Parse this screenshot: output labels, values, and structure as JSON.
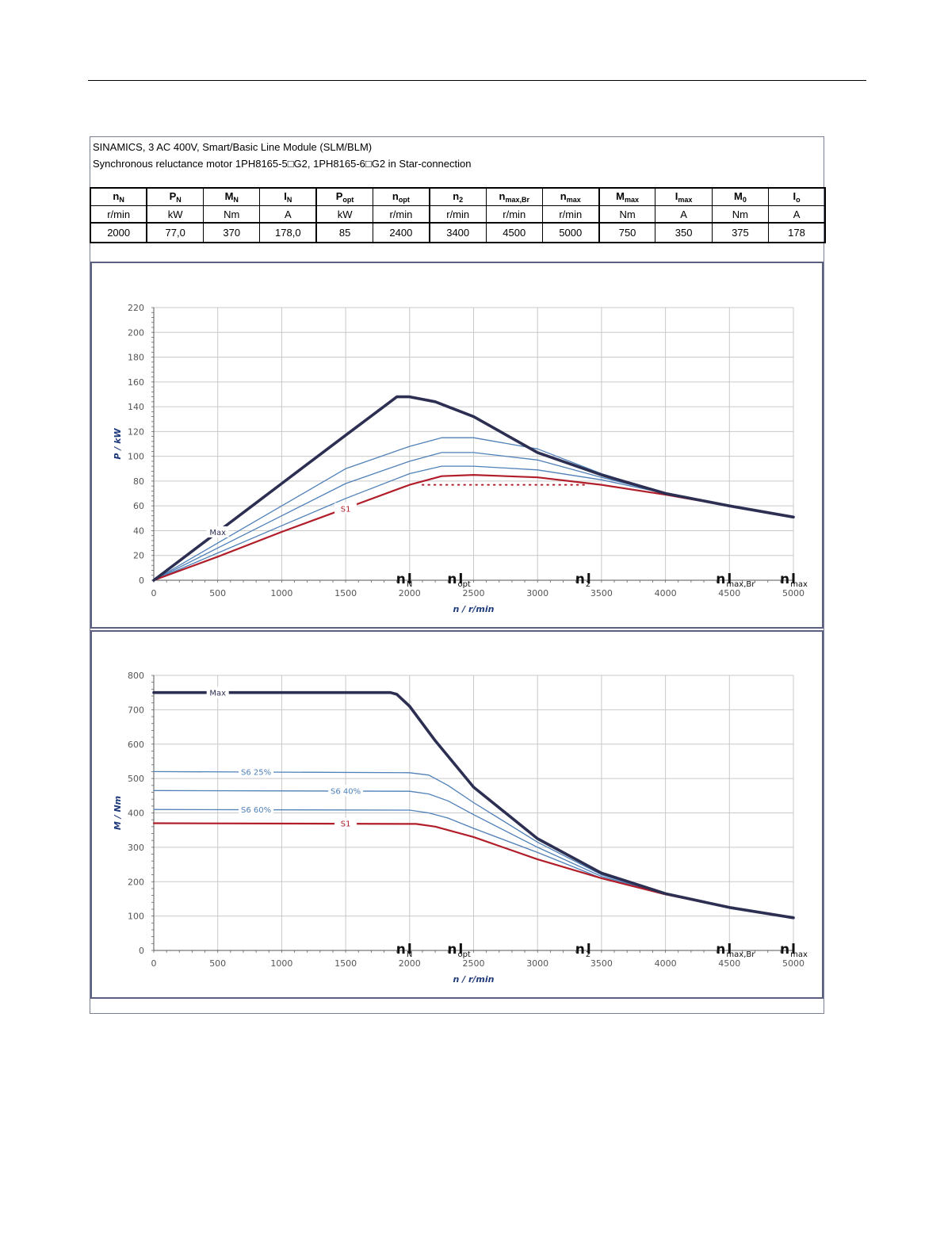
{
  "header": {
    "line1": "SINAMICS, 3 AC 400V, Smart/Basic Line Module (SLM/BLM)",
    "line2": "Synchronous reluctance motor  1PH8165-5□G2,  1PH8165-6□G2   in Star-connection"
  },
  "spec_table": {
    "columns": [
      {
        "sym": "n",
        "sub": "N",
        "unit": "r/min",
        "value": "2000"
      },
      {
        "sym": "P",
        "sub": "N",
        "unit": "kW",
        "value": "77,0"
      },
      {
        "sym": "M",
        "sub": "N",
        "unit": "Nm",
        "value": "370"
      },
      {
        "sym": "I",
        "sub": "N",
        "unit": "A",
        "value": "178,0"
      },
      {
        "sym": "P",
        "sub": "opt",
        "unit": "kW",
        "value": "85"
      },
      {
        "sym": "n",
        "sub": "opt",
        "unit": "r/min",
        "value": "2400"
      },
      {
        "sym": "n",
        "sub": "2",
        "unit": "r/min",
        "value": "3400"
      },
      {
        "sym": "n",
        "sub": "max,Br",
        "unit": "r/min",
        "value": "4500"
      },
      {
        "sym": "n",
        "sub": "max",
        "unit": "r/min",
        "value": "5000"
      },
      {
        "sym": "M",
        "sub": "max",
        "unit": "Nm",
        "value": "750"
      },
      {
        "sym": "I",
        "sub": "max",
        "unit": "A",
        "value": "350"
      },
      {
        "sym": "M",
        "sub": "0",
        "unit": "Nm",
        "value": "375"
      },
      {
        "sym": "I",
        "sub": "o",
        "unit": "A",
        "value": "178"
      }
    ]
  },
  "colors": {
    "max": "#2d2f52",
    "s1": "#b11e2a",
    "s6": "#4f80b8",
    "grid": "#c9c9c9"
  },
  "markers": [
    {
      "sym": "n",
      "sub": "N",
      "x": 2000
    },
    {
      "sym": "n",
      "sub": "opt",
      "x": 2400
    },
    {
      "sym": "n",
      "sub": "2",
      "x": 3400
    },
    {
      "sym": "n",
      "sub": "max,Br",
      "x": 4500
    },
    {
      "sym": "n",
      "sub": "max",
      "x": 5000
    }
  ],
  "chart_data": [
    {
      "type": "line",
      "ylabel": "P / kW",
      "xlabel": "n / r/min",
      "xlim": [
        0,
        5000
      ],
      "ylim": [
        0,
        220
      ],
      "xticks": [
        0,
        500,
        1000,
        1500,
        2000,
        2500,
        3000,
        3500,
        4000,
        4500,
        5000
      ],
      "yticks": [
        0,
        20,
        40,
        60,
        80,
        100,
        120,
        140,
        160,
        180,
        200,
        220
      ],
      "grid": true,
      "series": [
        {
          "name": "Max",
          "role": "max",
          "points": [
            [
              0,
              0
            ],
            [
              500,
              39
            ],
            [
              1000,
              78
            ],
            [
              1500,
              117
            ],
            [
              1900,
              148
            ],
            [
              2000,
              148
            ],
            [
              2200,
              144
            ],
            [
              2500,
              132
            ],
            [
              3000,
              103
            ],
            [
              3500,
              85
            ],
            [
              4000,
              70
            ],
            [
              4500,
              60
            ],
            [
              5000,
              51
            ]
          ]
        },
        {
          "name": "",
          "role": "s6",
          "points": [
            [
              0,
              0
            ],
            [
              500,
              30
            ],
            [
              1000,
              60
            ],
            [
              1500,
              90
            ],
            [
              2000,
              108
            ],
            [
              2250,
              115
            ],
            [
              2500,
              115
            ],
            [
              3000,
              106
            ],
            [
              3500,
              86
            ],
            [
              4000,
              70
            ],
            [
              4500,
              60
            ],
            [
              5000,
              51
            ]
          ]
        },
        {
          "name": "",
          "role": "s6",
          "points": [
            [
              0,
              0
            ],
            [
              500,
              26
            ],
            [
              1000,
              52
            ],
            [
              1500,
              78
            ],
            [
              2000,
              96
            ],
            [
              2250,
              103
            ],
            [
              2500,
              103
            ],
            [
              3000,
              97
            ],
            [
              3500,
              83
            ],
            [
              4000,
              70
            ],
            [
              4500,
              60
            ],
            [
              5000,
              51
            ]
          ]
        },
        {
          "name": "",
          "role": "s6",
          "points": [
            [
              0,
              0
            ],
            [
              500,
              22
            ],
            [
              1000,
              44
            ],
            [
              1500,
              66
            ],
            [
              2000,
              86
            ],
            [
              2250,
              92
            ],
            [
              2500,
              92
            ],
            [
              3000,
              89
            ],
            [
              3500,
              81
            ],
            [
              4000,
              70
            ],
            [
              4500,
              60
            ],
            [
              5000,
              51
            ]
          ]
        },
        {
          "name": "S1",
          "role": "s1",
          "points": [
            [
              0,
              0
            ],
            [
              500,
              19
            ],
            [
              1000,
              39
            ],
            [
              1500,
              58
            ],
            [
              2000,
              77
            ],
            [
              2250,
              84
            ],
            [
              2500,
              85
            ],
            [
              3000,
              83
            ],
            [
              3500,
              77
            ],
            [
              4000,
              69
            ],
            [
              4500,
              60
            ],
            [
              5000,
              51
            ]
          ]
        },
        {
          "name": "",
          "role": "s1-dotted",
          "points": [
            [
              2100,
              77
            ],
            [
              3400,
              77
            ]
          ]
        }
      ],
      "labels": [
        {
          "text": "Max",
          "x": 500,
          "y": 39,
          "role": "max"
        },
        {
          "text": "S1",
          "x": 1500,
          "y": 58,
          "role": "s1"
        }
      ]
    },
    {
      "type": "line",
      "ylabel": "M / Nm",
      "xlabel": "n / r/min",
      "xlim": [
        0,
        5000
      ],
      "ylim": [
        0,
        800
      ],
      "xticks": [
        0,
        500,
        1000,
        1500,
        2000,
        2500,
        3000,
        3500,
        4000,
        4500,
        5000
      ],
      "yticks": [
        0,
        100,
        200,
        300,
        400,
        500,
        600,
        700,
        800
      ],
      "grid": true,
      "series": [
        {
          "name": "Max",
          "role": "max",
          "points": [
            [
              0,
              750
            ],
            [
              1850,
              750
            ],
            [
              1900,
              745
            ],
            [
              2000,
              710
            ],
            [
              2200,
              610
            ],
            [
              2500,
              475
            ],
            [
              3000,
              325
            ],
            [
              3500,
              225
            ],
            [
              4000,
              165
            ],
            [
              4500,
              125
            ],
            [
              5000,
              95
            ]
          ]
        },
        {
          "name": "S6 25%",
          "role": "s6",
          "points": [
            [
              0,
              520
            ],
            [
              2000,
              517
            ],
            [
              2150,
              510
            ],
            [
              2300,
              480
            ],
            [
              2500,
              430
            ],
            [
              3000,
              315
            ],
            [
              3500,
              220
            ],
            [
              4000,
              165
            ],
            [
              4500,
              125
            ],
            [
              5000,
              95
            ]
          ]
        },
        {
          "name": "S6 40%",
          "role": "s6",
          "points": [
            [
              0,
              465
            ],
            [
              2000,
              463
            ],
            [
              2150,
              455
            ],
            [
              2300,
              435
            ],
            [
              2500,
              395
            ],
            [
              3000,
              300
            ],
            [
              3500,
              215
            ],
            [
              4000,
              165
            ],
            [
              4500,
              125
            ],
            [
              5000,
              95
            ]
          ]
        },
        {
          "name": "S6 60%",
          "role": "s6",
          "points": [
            [
              0,
              410
            ],
            [
              2000,
              408
            ],
            [
              2150,
              400
            ],
            [
              2300,
              385
            ],
            [
              2500,
              355
            ],
            [
              3000,
              285
            ],
            [
              3500,
              210
            ],
            [
              4000,
              165
            ],
            [
              4500,
              125
            ],
            [
              5000,
              95
            ]
          ]
        },
        {
          "name": "S1",
          "role": "s1",
          "points": [
            [
              0,
              370
            ],
            [
              2050,
              368
            ],
            [
              2200,
              360
            ],
            [
              2500,
              330
            ],
            [
              3000,
              265
            ],
            [
              3500,
              210
            ],
            [
              4000,
              163
            ],
            [
              4500,
              125
            ],
            [
              5000,
              95
            ]
          ]
        }
      ],
      "labels": [
        {
          "text": "Max",
          "x": 500,
          "y": 750,
          "role": "max"
        },
        {
          "text": "S6 25%",
          "x": 800,
          "y": 520,
          "role": "s6"
        },
        {
          "text": "S6 40%",
          "x": 1500,
          "y": 465,
          "role": "s6"
        },
        {
          "text": "S6 60%",
          "x": 800,
          "y": 410,
          "role": "s6"
        },
        {
          "text": "S1",
          "x": 1500,
          "y": 370,
          "role": "s1"
        }
      ]
    }
  ]
}
